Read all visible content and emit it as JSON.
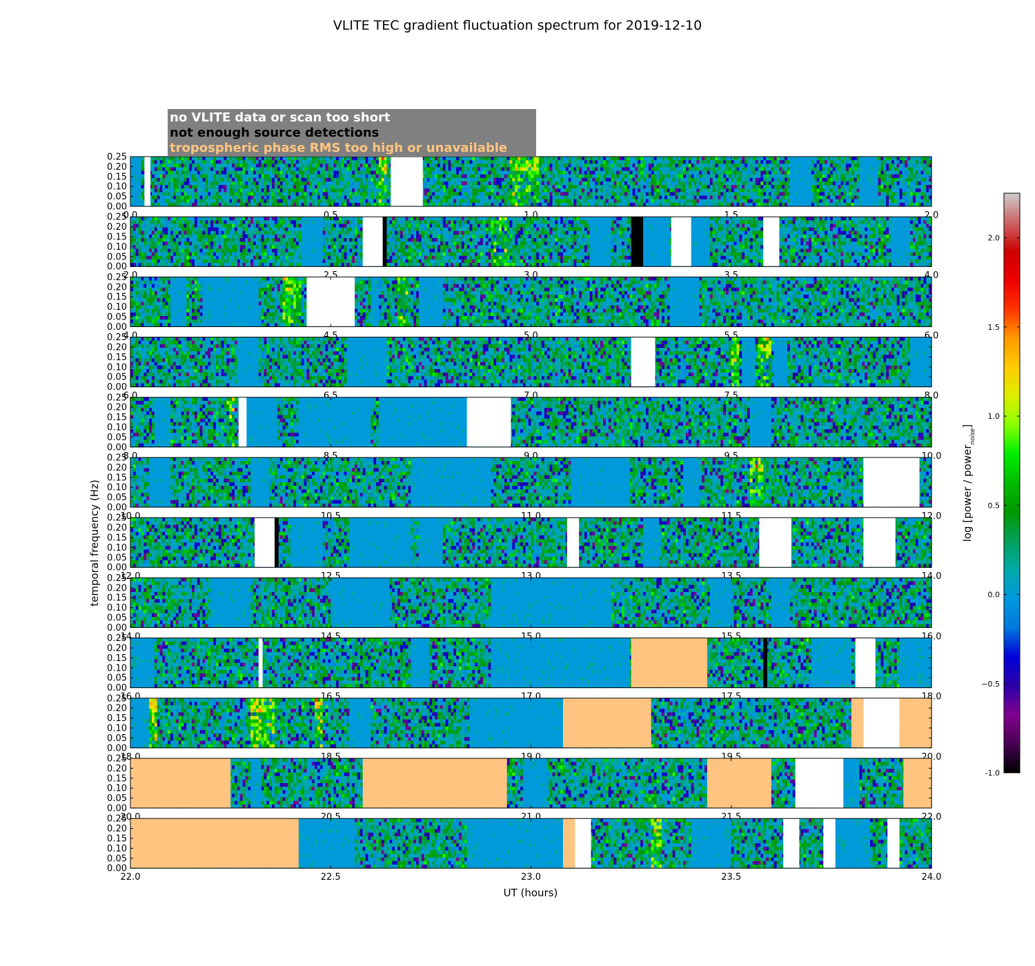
{
  "chart_data": {
    "type": "heatmap",
    "title": "VLITE TEC gradient fluctuation spectrum for 2019-12-10",
    "xlabel": "UT (hours)",
    "ylabel": "temporal frequency (Hz)",
    "colorbar_label": "log [power / power_noise]",
    "colorbar_range": [
      -1.0,
      2.25
    ],
    "colorbar_ticks": [
      "-1.0",
      "−0.5",
      "0.0",
      "0.5",
      "1.0",
      "1.5",
      "2.0"
    ],
    "colorbar_tick_values": [
      -1.0,
      -0.5,
      0.0,
      0.5,
      1.0,
      1.5,
      2.0
    ],
    "colormap": "nipy_spectral",
    "ylim": [
      0.0,
      0.25
    ],
    "yticks": [
      "0.00",
      "0.05",
      "0.10",
      "0.15",
      "0.20",
      "0.25"
    ],
    "ytick_values": [
      0.0,
      0.05,
      0.1,
      0.15,
      0.2,
      0.25
    ],
    "hours_per_panel": 2,
    "legend": [
      {
        "label": "no VLITE data or scan too short",
        "color": "#ffffff"
      },
      {
        "label": "not enough source detections",
        "color": "#000000"
      },
      {
        "label": "tropospheric phase RMS too high or unavailable",
        "color": "#ffc580"
      }
    ],
    "panels": [
      {
        "start": 0,
        "xticks": [
          "0.0",
          "0.5",
          "1.0",
          "1.5",
          "2.0"
        ],
        "flags": [
          {
            "type": "nodata",
            "x0": 0.035,
            "x1": 0.05
          },
          {
            "type": "nodata",
            "x0": 0.65,
            "x1": 0.73
          }
        ],
        "quiet": [
          [
            0.0,
            0.03
          ],
          [
            1.65,
            1.7
          ],
          [
            1.82,
            1.87
          ]
        ],
        "hot": [
          [
            0.62,
            0.64,
            0.7
          ],
          [
            0.95,
            1.02,
            0.6
          ]
        ]
      },
      {
        "start": 2,
        "xticks": [
          "2.0",
          "2.5",
          "3.0",
          "3.5",
          "4.0"
        ],
        "flags": [
          {
            "type": "nodata",
            "x0": 2.58,
            "x1": 2.63
          },
          {
            "type": "lowdet",
            "x0": 2.63,
            "x1": 2.64
          },
          {
            "type": "lowdet",
            "x0": 3.25,
            "x1": 3.28
          },
          {
            "type": "nodata",
            "x0": 3.35,
            "x1": 3.4
          },
          {
            "type": "nodata",
            "x0": 3.58,
            "x1": 3.62
          }
        ],
        "quiet": [
          [
            2.43,
            2.48
          ],
          [
            3.15,
            3.2
          ],
          [
            3.28,
            3.35
          ],
          [
            3.4,
            3.45
          ],
          [
            3.9,
            3.95
          ]
        ],
        "hot": [
          [
            2.9,
            2.95,
            0.45
          ]
        ]
      },
      {
        "start": 4,
        "xticks": [
          "4.0",
          "4.5",
          "5.0",
          "5.5",
          "6.0"
        ],
        "flags": [
          {
            "type": "nodata",
            "x0": 4.44,
            "x1": 4.56
          }
        ],
        "quiet": [
          [
            4.1,
            4.14
          ],
          [
            4.18,
            4.32
          ],
          [
            4.6,
            4.62
          ],
          [
            4.72,
            4.78
          ],
          [
            5.35,
            5.42
          ]
        ],
        "hot": [
          [
            4.38,
            4.43,
            0.6
          ],
          [
            4.67,
            4.69,
            0.5
          ]
        ]
      },
      {
        "start": 6,
        "xticks": [
          "6.0",
          "6.5",
          "7.0",
          "7.5",
          "8.0"
        ],
        "flags": [
          {
            "type": "nodata",
            "x0": 7.25,
            "x1": 7.31
          }
        ],
        "quiet": [
          [
            6.27,
            6.32
          ],
          [
            6.54,
            6.64
          ],
          [
            7.53,
            7.56
          ],
          [
            7.61,
            7.64
          ],
          [
            7.95,
            8.0
          ]
        ],
        "hot": [
          [
            7.5,
            7.52,
            0.75
          ],
          [
            7.57,
            7.6,
            0.6
          ]
        ]
      },
      {
        "start": 8,
        "xticks": [
          "8.0",
          "8.5",
          "9.0",
          "9.5",
          "10.0"
        ],
        "flags": [
          {
            "type": "nodata",
            "x0": 8.27,
            "x1": 8.29
          },
          {
            "type": "nodata",
            "x0": 8.84,
            "x1": 8.95
          }
        ],
        "quiet": [
          [
            8.06,
            8.1
          ],
          [
            8.28,
            8.37
          ],
          [
            8.42,
            8.6
          ],
          [
            8.62,
            8.84
          ],
          [
            9.55,
            9.6
          ]
        ],
        "hot": [
          [
            8.24,
            8.26,
            0.5
          ]
        ]
      },
      {
        "start": 10,
        "xticks": [
          "10.0",
          "10.5",
          "11.0",
          "11.5",
          "12.0"
        ],
        "flags": [
          {
            "type": "nodata",
            "x0": 11.83,
            "x1": 11.97
          }
        ],
        "quiet": [
          [
            10.05,
            10.1
          ],
          [
            10.3,
            10.35
          ],
          [
            10.7,
            10.9
          ],
          [
            11.1,
            11.25
          ],
          [
            11.38,
            11.42
          ]
        ],
        "hot": [
          [
            11.55,
            11.58,
            0.65
          ]
        ]
      },
      {
        "start": 12,
        "xticks": [
          "12.0",
          "12.5",
          "13.0",
          "13.5",
          "14.0"
        ],
        "flags": [
          {
            "type": "nodata",
            "x0": 12.31,
            "x1": 12.36
          },
          {
            "type": "lowdet",
            "x0": 12.36,
            "x1": 12.37
          },
          {
            "type": "nodata",
            "x0": 13.09,
            "x1": 13.12
          },
          {
            "type": "nodata",
            "x0": 13.57,
            "x1": 13.65
          },
          {
            "type": "nodata",
            "x0": 13.83,
            "x1": 13.91
          }
        ],
        "quiet": [
          [
            12.4,
            12.48
          ],
          [
            12.55,
            12.7
          ],
          [
            12.72,
            12.78
          ],
          [
            13.28,
            13.32
          ]
        ],
        "hot": []
      },
      {
        "start": 14,
        "xticks": [
          "14.0",
          "14.5",
          "15.0",
          "15.5",
          "16.0"
        ],
        "flags": [],
        "quiet": [
          [
            14.2,
            14.3
          ],
          [
            14.5,
            14.65
          ],
          [
            14.9,
            15.2
          ],
          [
            15.45,
            15.5
          ],
          [
            15.6,
            15.65
          ]
        ],
        "hot": []
      },
      {
        "start": 16,
        "xticks": [
          "16.0",
          "16.5",
          "17.0",
          "17.5",
          "18.0"
        ],
        "flags": [
          {
            "type": "nodata",
            "x0": 16.32,
            "x1": 16.33
          },
          {
            "type": "tropo",
            "x0": 17.25,
            "x1": 17.44
          },
          {
            "type": "lowdet",
            "x0": 17.58,
            "x1": 17.59
          },
          {
            "type": "nodata",
            "x0": 17.81,
            "x1": 17.86
          }
        ],
        "quiet": [
          [
            16.0,
            16.06
          ],
          [
            16.7,
            16.75
          ],
          [
            16.9,
            17.25
          ],
          [
            17.7,
            17.8
          ],
          [
            17.92,
            18.0
          ]
        ],
        "hot": []
      },
      {
        "start": 18,
        "xticks": [
          "18.0",
          "18.5",
          "19.0",
          "19.5",
          "20.0"
        ],
        "flags": [
          {
            "type": "tropo",
            "x0": 19.08,
            "x1": 19.3
          },
          {
            "type": "tropo",
            "x0": 19.8,
            "x1": 19.83
          },
          {
            "type": "nodata",
            "x0": 19.83,
            "x1": 19.92
          },
          {
            "type": "tropo",
            "x0": 19.92,
            "x1": 20.0
          }
        ],
        "quiet": [
          [
            18.0,
            18.05
          ],
          [
            18.55,
            18.6
          ],
          [
            18.85,
            19.08
          ]
        ],
        "hot": [
          [
            18.05,
            18.07,
            0.8
          ],
          [
            18.3,
            18.36,
            0.75
          ],
          [
            18.46,
            18.48,
            0.75
          ]
        ]
      },
      {
        "start": 20,
        "xticks": [
          "20.0",
          "20.5",
          "21.0",
          "21.5",
          "22.0"
        ],
        "flags": [
          {
            "type": "tropo",
            "x0": 20.0,
            "x1": 20.25
          },
          {
            "type": "tropo",
            "x0": 20.58,
            "x1": 20.94
          },
          {
            "type": "tropo",
            "x0": 21.44,
            "x1": 21.6
          },
          {
            "type": "nodata",
            "x0": 21.66,
            "x1": 21.78
          },
          {
            "type": "tropo",
            "x0": 21.93,
            "x1": 22.0
          }
        ],
        "quiet": [
          [
            20.3,
            20.33
          ],
          [
            20.98,
            21.04
          ],
          [
            21.78,
            21.82
          ]
        ],
        "hot": []
      },
      {
        "start": 22,
        "xticks": [
          "22.0",
          "22.5",
          "23.0",
          "23.5",
          "24.0"
        ],
        "flags": [
          {
            "type": "tropo",
            "x0": 22.0,
            "x1": 22.42
          },
          {
            "type": "tropo",
            "x0": 23.08,
            "x1": 23.11
          },
          {
            "type": "nodata",
            "x0": 23.11,
            "x1": 23.15
          },
          {
            "type": "nodata",
            "x0": 23.63,
            "x1": 23.67
          },
          {
            "type": "nodata",
            "x0": 23.73,
            "x1": 23.76
          },
          {
            "type": "nodata",
            "x0": 23.89,
            "x1": 23.92
          }
        ],
        "quiet": [
          [
            22.42,
            22.56
          ],
          [
            22.84,
            23.08
          ],
          [
            23.4,
            23.5
          ],
          [
            23.76,
            23.85
          ]
        ],
        "hot": [
          [
            23.3,
            23.33,
            0.7
          ]
        ]
      }
    ]
  }
}
